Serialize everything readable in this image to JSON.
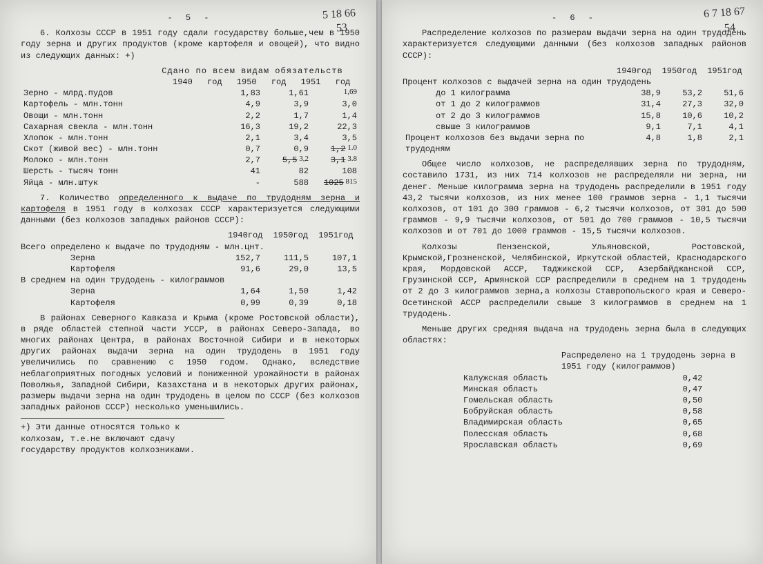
{
  "page5": {
    "num": "- 5 -",
    "hand1": "5 18 66",
    "hand2": "53",
    "p6a": "6. Колхозы СССР в 1951 году сдали государству больше,чем в 1950 году зерна и других продуктов (кроме картофеля и овощей), что видно из следующих данных: +)",
    "hdr": "Сдано по всем видам обязательств",
    "yrs": "1940 год   1950 год   1951 год",
    "t1": [
      {
        "l": "Зерно - млрд.пудов",
        "a": "1,83",
        "b": "1,61",
        "c": "1,69",
        "h": true
      },
      {
        "l": "Картофель - млн.тонн",
        "a": "4,9",
        "b": "3,9",
        "c": "3,0"
      },
      {
        "l": "Овощи - млн.тонн",
        "a": "2,2",
        "b": "1,7",
        "c": "1,4"
      },
      {
        "l": "Сахарная свекла - млн.тонн",
        "a": "16,3",
        "b": "19,2",
        "c": "22,3"
      },
      {
        "l": "Хлопок - млн.тонн",
        "a": "2,1",
        "b": "3,4",
        "c": "3,5"
      },
      {
        "l": "Скот (живой вес) - млн.тонн",
        "a": "0,7",
        "b": "0,9",
        "c": "1,2 1.0",
        "h": true
      },
      {
        "l": "Молоко - млн.тонн",
        "a": "2,7",
        "b": "5,5 3,2",
        "c": "3,1 3.8",
        "h": true
      },
      {
        "l": "Шерсть - тысяч тонн",
        "a": "41",
        "b": "82",
        "c": "108"
      },
      {
        "l": "Яйца - млн.штук",
        "a": "-",
        "b": "588",
        "c": "1025 815",
        "h": true
      }
    ],
    "p7": "7. Количество определенного к выдаче по трудодням зерна и картофеля в 1951 году в колхозах СССР характеризуется следующими данными (без колхозов западных районов СССР):",
    "p7u": "определенного к выдаче по трудодням зерна и картофеля",
    "yrs2": "1940год 1950год 1951год",
    "t2h1": "Всего определено к выдаче по трудодням - млн.цнт.",
    "t2": [
      {
        "l": "Зерна",
        "a": "152,7",
        "b": "111,5",
        "c": "107,1"
      },
      {
        "l": "Картофеля",
        "a": "91,6",
        "b": "29,0",
        "c": "13,5"
      }
    ],
    "t2h2": "В среднем на один трудодень - килограммов",
    "t3": [
      {
        "l": "Зерна",
        "a": "1,64",
        "b": "1,50",
        "c": "1,42"
      },
      {
        "l": "Картофеля",
        "a": "0,99",
        "b": "0,39",
        "c": "0,18"
      }
    ],
    "body": "В районах Северного Кавказа и Крыма (кроме Ростовской области), в ряде областей степной части УССР, в районах Северо-Запада, во многих районах Центра, в районах Восточной Сибири и в некоторых других районах выдачи зерна на один трудодень в 1951 году увеличились по сравнению с 1950 годом. Однако, вследствие неблагоприятных погодных условий и пониженной урожайности в районах Поволжья, Западной Сибири, Казахстана и в некоторых других районах, размеры выдачи зерна на один трудодень в целом по СССР (без колхозов западных районов СССР) несколько уменьшились.",
    "fn": "+) Эти данные относятся только к колхозам, т.е.не включают сдачу государству продуктов колхозниками."
  },
  "page6": {
    "num": "- 6 -",
    "hand1": "6 7 18 67",
    "hand2": "54",
    "p1": "Распределение колхозов по размерам выдачи зерна на один трудодень характеризуется следующими данными (без колхозов западных районов СССР):",
    "yrs": "1940год 1950год 1951год",
    "h1": "Процент колхозов с выдачей зерна на один трудодень",
    "t1": [
      {
        "l": "до 1 килограмма",
        "a": "38,9",
        "b": "53,2",
        "c": "51,6"
      },
      {
        "l": "от 1 до 2 килограммов",
        "a": "31,4",
        "b": "27,3",
        "c": "32,0"
      },
      {
        "l": "от 2 до 3 килограммов",
        "a": "15,8",
        "b": "10,6",
        "c": "10,2"
      },
      {
        "l": "свыше 3 килограммов",
        "a": "9,1",
        "b": "7,1",
        "c": "4,1"
      }
    ],
    "h2": "Процент колхозов без выдачи зерна по трудодням",
    "r2": {
      "a": "4,8",
      "b": "1,8",
      "c": "2,1"
    },
    "p2": "Общее число колхозов, не распределявших зерна по трудодням, составило 1731, из них 714 колхозов не распределяли ни зерна, ни денег. Меньше килограмма зерна на трудодень распределили в 1951 году 43,2 тысячи колхозов, из них менее 100 граммов зерна - 1,1 тысячи колхозов, от 101 до 300 граммов - 6,2 тысячи колхозов, от 301 до 500 граммов - 9,9 тысячи колхозов, от 501 до 700 граммов - 10,5 тысячи колхозов и от 701 до 1000 граммов - 15,5 тысячи колхозов.",
    "p3": "Колхозы Пензенской, Ульяновской, Ростовской, Крымской,Грозненской, Челябинской, Иркутской областей, Краснодарского края, Мордовской АССР, Таджикской ССР, Азербайджанской ССР, Грузинской ССР, Армянской ССР распределили в среднем на 1 трудодень от 2 до 3 килограммов зерна,а колхозы Ставропольского края и Северо-Осетинской АССР распределили свыше 3 килограммов в среднем на 1 трудодень.",
    "p4": "Меньше других средняя выдача на трудодень зерна была в следующих областях:",
    "h3": "Распределено на 1 трудодень зерна в 1951 году (килограммов)",
    "t2": [
      {
        "l": "Калужская область",
        "v": "0,42"
      },
      {
        "l": "Минская область",
        "v": "0,47"
      },
      {
        "l": "Гомельская область",
        "v": "0,50"
      },
      {
        "l": "Бобруйская область",
        "v": "0,58"
      },
      {
        "l": "Владимирская область",
        "v": "0,65"
      },
      {
        "l": "Полесская область",
        "v": "0,68"
      },
      {
        "l": "Ярославская область",
        "v": "0,69"
      }
    ]
  }
}
